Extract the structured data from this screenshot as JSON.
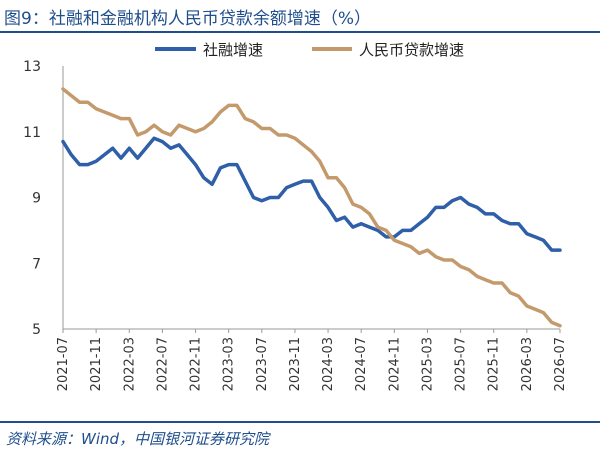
{
  "figure": {
    "title": "图9：社融和金融机构人民币贷款余额增速（%）",
    "source": "资料来源：Wind，中国银河证券研究院"
  },
  "chart_data": {
    "type": "line",
    "title": "",
    "xlabel": "",
    "ylabel": "",
    "ylim": [
      5,
      13
    ],
    "yticks": [
      "13",
      "11",
      "9",
      "7",
      "5"
    ],
    "xticks": [
      "2021-07",
      "2021-11",
      "2022-03",
      "2022-07",
      "2022-11",
      "2023-03",
      "2023-07",
      "2023-11",
      "2024-03",
      "2024-07",
      "2024-11",
      "2025-03",
      "2025-07",
      "2025-11",
      "2026-03",
      "2026-07"
    ],
    "legend_position": "top",
    "x_start": "2021-07",
    "series": [
      {
        "name": "社融增速",
        "color": "#2e5fa8",
        "values": [
          10.7,
          10.3,
          10.0,
          10.0,
          10.1,
          10.3,
          10.5,
          10.2,
          10.5,
          10.2,
          10.5,
          10.8,
          10.7,
          10.5,
          10.6,
          10.3,
          10.0,
          9.6,
          9.4,
          9.9,
          10.0,
          10.0,
          9.5,
          9.0,
          8.9,
          9.0,
          9.0,
          9.3,
          9.4,
          9.5,
          9.5,
          9.0,
          8.7,
          8.3,
          8.4,
          8.1,
          8.2,
          8.1,
          8.0,
          7.8,
          7.8,
          8.0,
          8.0,
          8.2,
          8.4,
          8.7,
          8.7,
          8.9,
          9.0,
          8.8,
          8.7,
          8.5,
          8.5,
          8.3,
          8.2,
          8.2,
          7.9,
          7.8,
          7.7,
          7.4,
          7.4
        ]
      },
      {
        "name": "人民币贷款增速",
        "color": "#c49a6c",
        "values": [
          12.3,
          12.1,
          11.9,
          11.9,
          11.7,
          11.6,
          11.5,
          11.4,
          11.4,
          10.9,
          11.0,
          11.2,
          11.0,
          10.9,
          11.2,
          11.1,
          11.0,
          11.1,
          11.3,
          11.6,
          11.8,
          11.8,
          11.4,
          11.3,
          11.1,
          11.1,
          10.9,
          10.9,
          10.8,
          10.6,
          10.4,
          10.1,
          9.6,
          9.6,
          9.3,
          8.8,
          8.7,
          8.5,
          8.1,
          8.0,
          7.7,
          7.6,
          7.5,
          7.3,
          7.4,
          7.2,
          7.1,
          7.1,
          6.9,
          6.8,
          6.6,
          6.5,
          6.4,
          6.4,
          6.1,
          6.0,
          5.7,
          5.6,
          5.5,
          5.2,
          5.1
        ]
      }
    ]
  }
}
